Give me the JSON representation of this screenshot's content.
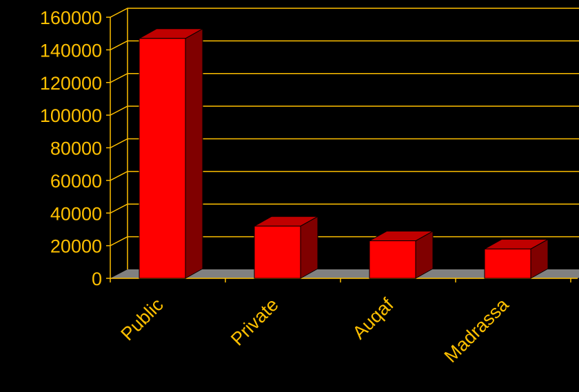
{
  "chart_data": {
    "type": "bar",
    "categories": [
      "Public",
      "Private",
      "Auqaf",
      "Madrassa"
    ],
    "values": [
      147000,
      32000,
      23000,
      18000
    ],
    "ylim": [
      0,
      160000
    ],
    "yticks": [
      "0",
      "20000",
      "40000",
      "60000",
      "80000",
      "100000",
      "120000",
      "140000",
      "160000"
    ],
    "title": "",
    "xlabel": "",
    "ylabel": "",
    "grid": true,
    "legend": "none",
    "style": "3d-column"
  },
  "colors": {
    "background": "#000000",
    "axis_text": "#FFC000",
    "gridline": "#FFC000",
    "bar_front": "#FF0000",
    "bar_side": "#800000",
    "bar_top": "#C00000",
    "floor": "#808080"
  }
}
